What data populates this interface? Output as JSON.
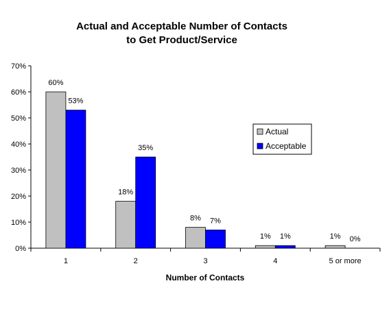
{
  "chart_data": {
    "type": "bar",
    "title_lines": [
      "Actual and Acceptable Number of Contacts",
      "to Get Product/Service"
    ],
    "xlabel": "Number of Contacts",
    "ylabel": "",
    "categories": [
      "1",
      "2",
      "3",
      "4",
      "5 or more"
    ],
    "series": [
      {
        "name": "Actual",
        "values": [
          60,
          18,
          8,
          1,
          1
        ],
        "labels": [
          "60%",
          "18%",
          "8%",
          "1%",
          "1%"
        ],
        "color": "#C0C0C0"
      },
      {
        "name": "Acceptable",
        "values": [
          53,
          35,
          7,
          1,
          0
        ],
        "labels": [
          "53%",
          "35%",
          "7%",
          "1%",
          "0%"
        ],
        "color": "#0000FF"
      }
    ],
    "ylim": [
      0,
      70
    ],
    "yticks": [
      0,
      10,
      20,
      30,
      40,
      50,
      60,
      70
    ],
    "ytick_labels": [
      "0%",
      "10%",
      "20%",
      "30%",
      "40%",
      "50%",
      "60%",
      "70%"
    ],
    "grid": false,
    "legend_position": "right",
    "bar_outline_color": "#000000"
  }
}
